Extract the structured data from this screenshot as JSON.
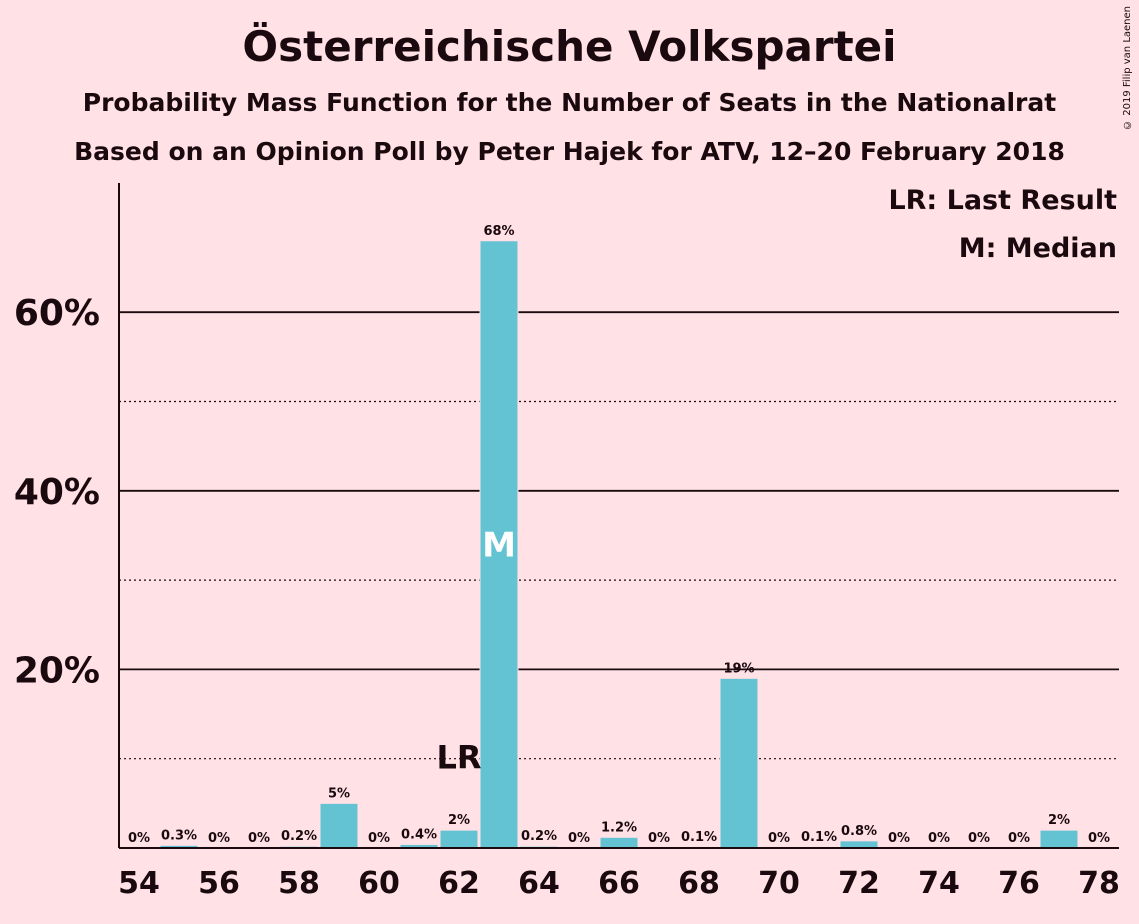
{
  "title": "Österreichische Volkspartei",
  "subtitle1": "Probability Mass Function for the Number of Seats in the Nationalrat",
  "subtitle2": "Based on an Opinion Poll by Peter Hajek for ATV, 12–20 February 2018",
  "copyright": "© 2019 Filip van Laenen",
  "legend": {
    "lr": "LR: Last Result",
    "m": "M: Median"
  },
  "colors": {
    "bar": "#64c3d2",
    "background": "#ffe1e6",
    "text": "#1a0a0f"
  },
  "chart_data": {
    "type": "bar",
    "x": [
      54,
      55,
      56,
      57,
      58,
      59,
      60,
      61,
      62,
      63,
      64,
      65,
      66,
      67,
      68,
      69,
      70,
      71,
      72,
      73,
      74,
      75,
      76,
      77,
      78
    ],
    "values": [
      0,
      0.3,
      0,
      0,
      0.2,
      5,
      0,
      0.4,
      2,
      68,
      0.2,
      0,
      1.2,
      0,
      0.1,
      19,
      0,
      0.1,
      0.8,
      0,
      0,
      0,
      0,
      2,
      0
    ],
    "labels": [
      "0%",
      "0.3%",
      "0%",
      "0%",
      "0.2%",
      "5%",
      "0%",
      "0.4%",
      "2%",
      "68%",
      "0.2%",
      "0%",
      "1.2%",
      "0%",
      "0.1%",
      "19%",
      "0%",
      "0.1%",
      "0.8%",
      "0%",
      "0%",
      "0%",
      "0%",
      "2%",
      "0%"
    ],
    "xticks": [
      54,
      56,
      58,
      60,
      62,
      64,
      66,
      68,
      70,
      72,
      74,
      76,
      78
    ],
    "yticks": [
      20,
      40,
      60
    ],
    "ytick_labels": [
      "20%",
      "40%",
      "60%"
    ],
    "ylim": [
      0,
      74
    ],
    "solid_gridlines": [
      20,
      40,
      60
    ],
    "dotted_gridlines": [
      10,
      30,
      50
    ],
    "last_result": 62,
    "last_result_label": "LR",
    "median": 63,
    "median_label": "M",
    "legend_placement": "top-right"
  }
}
